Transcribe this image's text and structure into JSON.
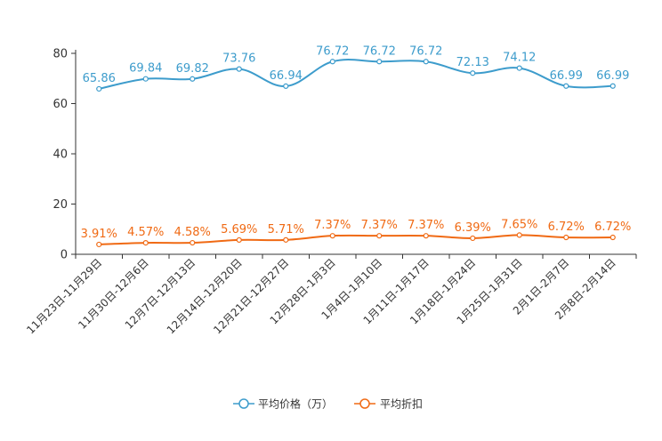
{
  "chart_data": {
    "type": "line",
    "categories": [
      "11月23日-11月29日",
      "11月30日-12月6日",
      "12月7日-12月13日",
      "12月14日-12月20日",
      "12月21日-12月27日",
      "12月28日-1月3日",
      "1月4日-1月10日",
      "1月11日-1月17日",
      "1月18日-1月24日",
      "1月25日-1月31日",
      "2月1日-2月7日",
      "2月8日-2月14日"
    ],
    "series": [
      {
        "name": "平均价格（万）",
        "color": "#3d9ccc",
        "values": [
          65.86,
          69.84,
          69.82,
          73.76,
          66.94,
          76.72,
          76.72,
          76.72,
          72.13,
          74.12,
          66.99,
          66.99
        ],
        "labels": [
          "65.86",
          "69.84",
          "69.82",
          "73.76",
          "66.94",
          "76.72",
          "76.72",
          "76.72",
          "72.13",
          "74.12",
          "66.99",
          "66.99"
        ]
      },
      {
        "name": "平均折扣",
        "color": "#f06a14",
        "values": [
          3.91,
          4.57,
          4.58,
          5.69,
          5.71,
          7.37,
          7.37,
          7.37,
          6.39,
          7.65,
          6.72,
          6.72
        ],
        "labels": [
          "3.91%",
          "4.57%",
          "4.58%",
          "5.69%",
          "5.71%",
          "7.37%",
          "7.37%",
          "7.37%",
          "6.39%",
          "7.65%",
          "6.72%",
          "6.72%"
        ]
      }
    ],
    "yticks": [
      "0",
      "20",
      "40",
      "60",
      "80"
    ],
    "ylim": [
      0,
      80
    ],
    "title": "",
    "xlabel": "",
    "ylabel": "",
    "legend_position": "bottom-center"
  }
}
